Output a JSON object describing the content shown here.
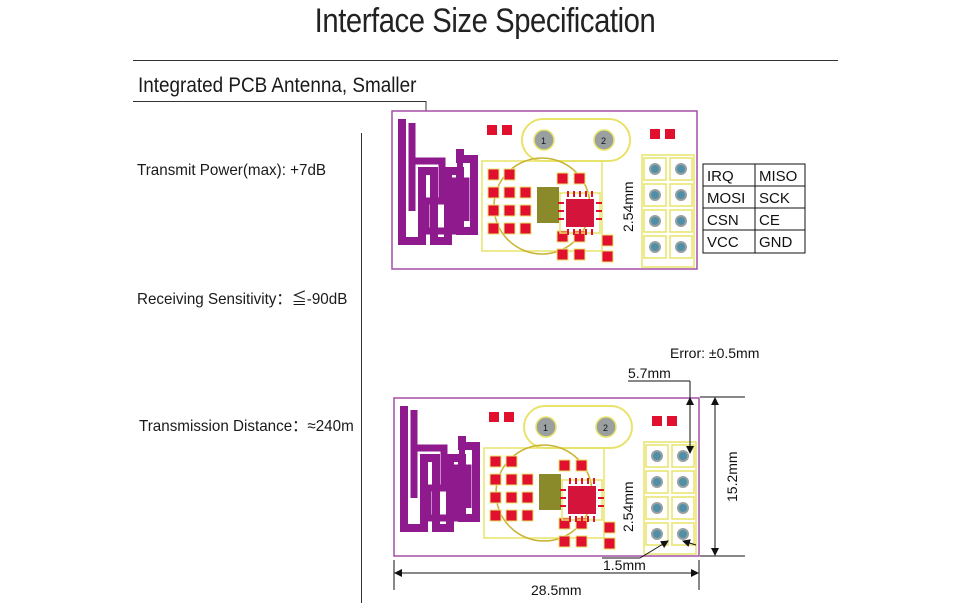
{
  "title": "Interface Size Specification",
  "antenna_label": "Integrated PCB Antenna, Smaller",
  "specs": {
    "transmit_power": "Transmit Power(max): +7dB",
    "receiving_sensitivity": "Receiving Sensitivity：≦-90dB",
    "transmission_distance": "Transmission Distance：≈240m"
  },
  "pin_table": {
    "rows": [
      [
        "IRQ",
        "MISO"
      ],
      [
        "MOSI",
        "SCK"
      ],
      [
        "CSN",
        "CE"
      ],
      [
        "VCC",
        "GND"
      ]
    ]
  },
  "pitch_label": "2.54mm",
  "dimensions": {
    "error": "Error: ±0.5mm",
    "pin_offset": "5.7mm",
    "height": "15.2mm",
    "pin_edge": "1.5mm",
    "width": "28.5mm"
  },
  "pcb_colors": {
    "board_outline": "#a44ea6",
    "antenna": "#8e1a8e",
    "pad": "#e0102e",
    "silkscreen": "#e8e36a",
    "chip": "#d4143a"
  },
  "pad_labels": [
    "1",
    "2"
  ]
}
